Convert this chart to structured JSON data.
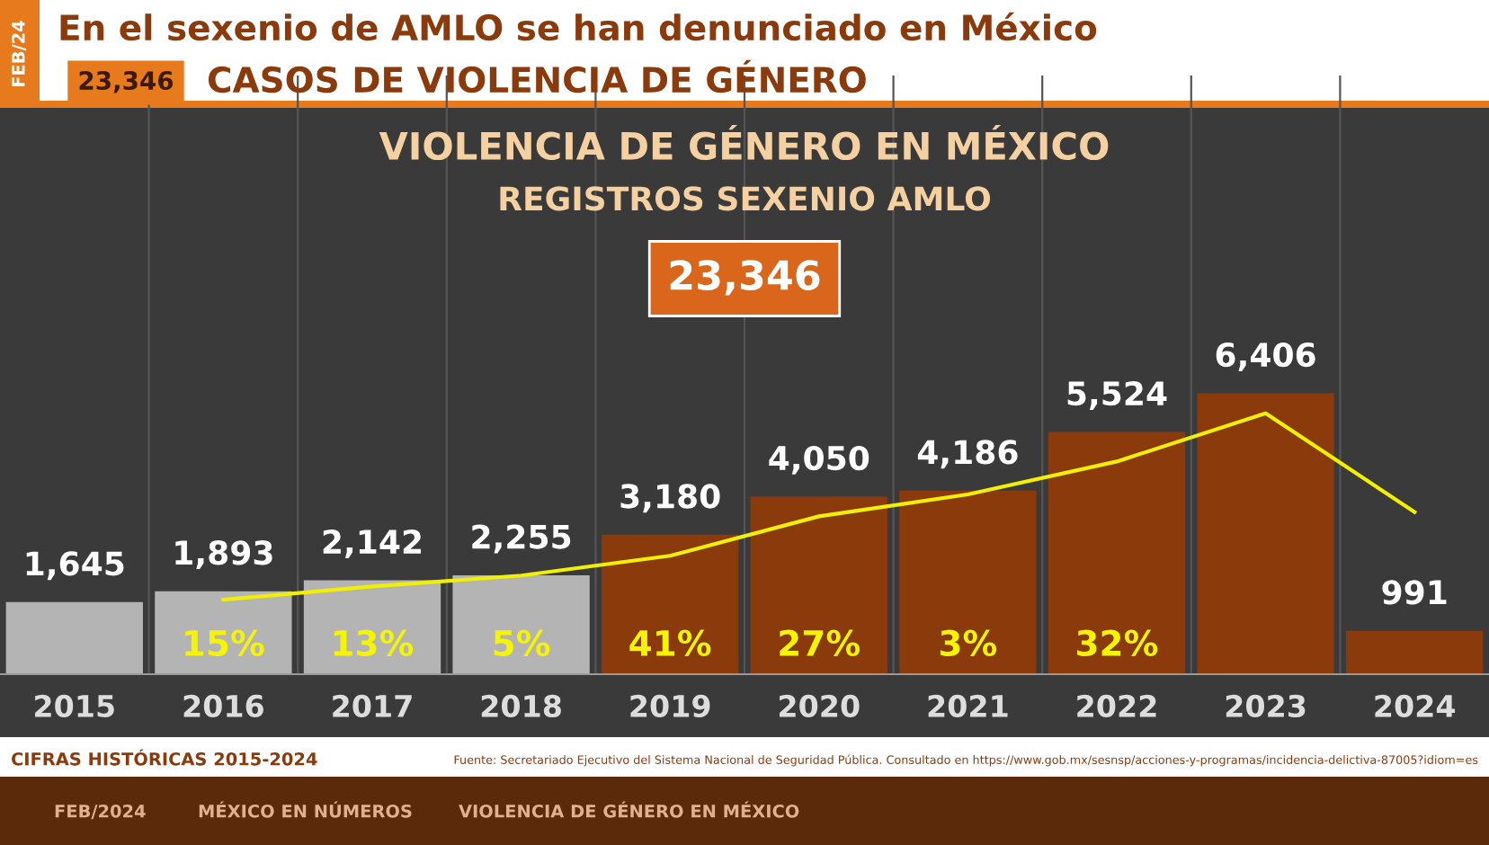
{
  "chart_data": {
    "type": "bar",
    "title": "VIOLENCIA DE GÉNERO EN MÉXICO",
    "subtitle": "REGISTROS SEXENIO AMLO",
    "categories": [
      "2015",
      "2016",
      "2017",
      "2018",
      "2019",
      "2020",
      "2021",
      "2022",
      "2023",
      "2024"
    ],
    "series": [
      {
        "values": [
          1645,
          1893,
          2142,
          2255,
          3180,
          4050,
          4186,
          5524,
          6406,
          991
        ],
        "value_labels": [
          "1,645",
          "1,893",
          "2,142",
          "2,255",
          "3,180",
          "4,050",
          "4,186",
          "5,524",
          "6,406",
          "991"
        ],
        "colors": [
          "#b4b4b4",
          "#b4b4b4",
          "#b4b4b4",
          "#b4b4b4",
          "#8b3a0c",
          "#8b3a0c",
          "#8b3a0c",
          "#8b3a0c",
          "#8b3a0c",
          "#8b3a0c"
        ]
      },
      {
        "type": "line",
        "color": "#f0f000",
        "values": [
          null,
          1700,
          2000,
          2250,
          2700,
          3600,
          4100,
          4850,
          5950,
          3700
        ]
      }
    ],
    "grid": "x",
    "legend": false,
    "annotations": [
      "15%",
      "13%",
      "5%",
      "41%",
      "27%",
      "3%",
      "32%",
      "23,346",
      "FEB/24",
      "En el sexenio de AMLO se han denunciado en México",
      "23,346",
      "CASOS DE VIOLENCIA DE GÉNERO",
      "CIFRAS HISTÓRICAS 2015-2024",
      "Fuente: Secretariado Ejecutivo del Sistema Nacional de Seguridad Pública. Consultado en https://www.gob.mx/sesnsp/acciones-y-programas/incidencia-delictiva-87005?idiom=es",
      "FEB/2024",
      "MÉXICO EN NÚMEROS",
      "VIOLENCIA DE GÉNERO EN MÉXICO"
    ]
  }
}
